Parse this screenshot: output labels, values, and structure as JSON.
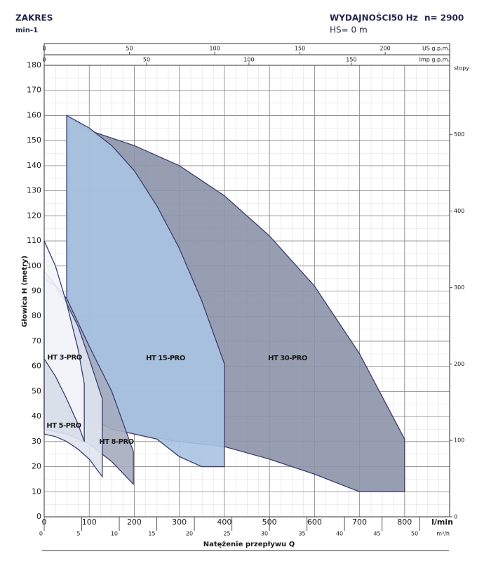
{
  "chart_data": {
    "type": "region",
    "title": "ZAKRES",
    "subtitle": "min-1",
    "frequency_label": "WYDAJNOŚCI50 Hz",
    "speed_label": "n= 2900",
    "suction_label": "HS= 0 m",
    "x_label": "Natężenie przepływu Q",
    "y_label": "Głowica H (metry)",
    "x_unit": "l/min",
    "x2_unit": "m³/h",
    "x3_unit": "US g.p.m.",
    "x4_unit": "Imp g.p.m.",
    "y2_unit": "stopy",
    "xlim": [
      0,
      900
    ],
    "xticks": [
      0,
      100,
      200,
      300,
      400,
      500,
      600,
      700,
      800
    ],
    "ylim": [
      0,
      180
    ],
    "yticks": [
      0,
      10,
      20,
      30,
      40,
      50,
      60,
      70,
      80,
      90,
      100,
      110,
      120,
      130,
      140,
      150,
      160,
      170,
      180
    ],
    "x2lim": [
      0,
      54
    ],
    "x2ticks": [
      0,
      5,
      10,
      15,
      20,
      25,
      30,
      35,
      40,
      45,
      50
    ],
    "x3lim": [
      0,
      237.8
    ],
    "x3ticks": [
      0,
      50,
      100,
      150,
      200
    ],
    "x4lim": [
      0,
      198
    ],
    "x4ticks": [
      0,
      50,
      100,
      150
    ],
    "y2lim": [
      0,
      590.6
    ],
    "y2ticks": [
      0,
      100,
      200,
      300,
      400,
      500
    ],
    "grid": true,
    "series": [
      {
        "name": "HT 30-PRO",
        "color": "#8c94aa",
        "x": [
          50,
          100,
          200,
          300,
          400,
          500,
          600,
          700,
          800,
          800,
          700,
          600,
          500,
          400,
          300,
          200,
          100,
          50
        ],
        "values": [
          160,
          154,
          148,
          140,
          128,
          112,
          92,
          65,
          31,
          10,
          10,
          17,
          23,
          28,
          30,
          33,
          38,
          40
        ]
      },
      {
        "name": "HT 15-PRO",
        "color": "#a9c3e2",
        "x": [
          50,
          100,
          150,
          200,
          250,
          300,
          350,
          400,
          400,
          350,
          300,
          250,
          200,
          150,
          100,
          50
        ],
        "values": [
          160,
          155,
          148,
          138,
          124,
          107,
          86,
          61,
          20,
          20,
          24,
          31,
          33,
          35,
          40,
          45
        ]
      },
      {
        "name": "HT 8-PRO",
        "color": "#a6acbe",
        "x": [
          0,
          50,
          100,
          150,
          198,
          198,
          150,
          100,
          50,
          0
        ],
        "values": [
          98,
          87,
          68,
          50,
          26,
          13,
          22,
          29,
          33,
          35
        ]
      },
      {
        "name": "HT 5-PRO",
        "color": "#dfe4ee",
        "x": [
          0,
          25,
          50,
          75,
          100,
          129,
          129,
          100,
          75,
          50,
          25,
          0
        ],
        "values": [
          95,
          92,
          85,
          76,
          63,
          47,
          16,
          23,
          27,
          30,
          32,
          33
        ]
      },
      {
        "name": "HT 3-PRO",
        "color": "#f3f5f9",
        "x": [
          0,
          25,
          50,
          75,
          89,
          89,
          75,
          50,
          25,
          0
        ],
        "values": [
          110,
          100,
          85,
          67,
          53,
          30,
          37,
          47,
          56,
          63
        ]
      }
    ]
  }
}
